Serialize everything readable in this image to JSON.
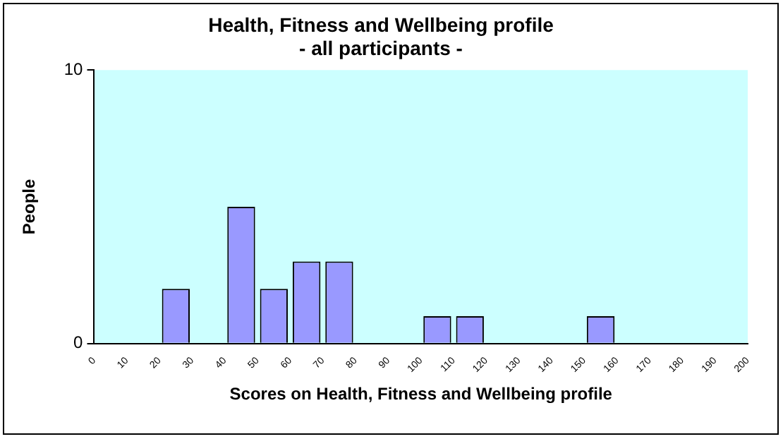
{
  "chart_data": {
    "type": "histogram",
    "title": "Health, Fitness and Wellbeing profile",
    "subtitle": "- all participants -",
    "xlabel": "Scores on Health, Fitness and Wellbeing profile",
    "ylabel": "People",
    "bins": [
      0,
      10,
      20,
      30,
      40,
      50,
      60,
      70,
      80,
      90,
      100,
      110,
      120,
      130,
      140,
      150,
      160,
      170,
      180,
      190,
      200
    ],
    "values": [
      0,
      0,
      2,
      0,
      5,
      2,
      3,
      3,
      0,
      0,
      1,
      1,
      0,
      0,
      0,
      1,
      0,
      0,
      0,
      0
    ],
    "color": "#9999ff",
    "xlim": [
      0,
      200
    ],
    "xticks": [
      0,
      10,
      20,
      30,
      40,
      50,
      60,
      70,
      80,
      90,
      100,
      110,
      120,
      130,
      140,
      150,
      160,
      170,
      180,
      190,
      200
    ],
    "ylim": [
      0,
      10
    ],
    "yticks": [
      0,
      10
    ]
  }
}
